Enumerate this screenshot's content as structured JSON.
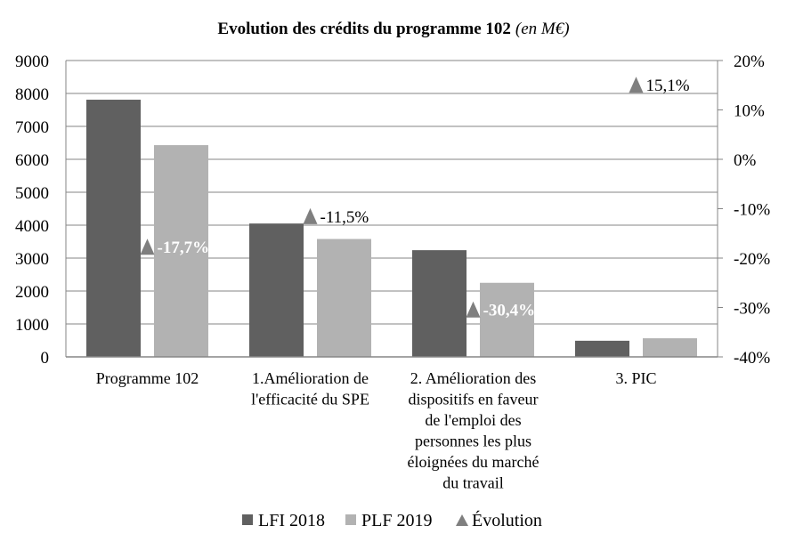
{
  "chart_data": {
    "type": "bar",
    "title": "Evolution des crédits du programme 102",
    "title_suffix": "(en M€)",
    "xlabel": "",
    "ylabel": "",
    "categories": [
      "Programme 102",
      "1.Amélioration de l'efficacité du SPE",
      "2. Amélioration des dispositifs en faveur de l'emploi des personnes les plus éloignées du marché du travail",
      "3. PIC"
    ],
    "category_lines": [
      [
        "Programme 102"
      ],
      [
        "1.Amélioration de",
        "l'efficacité du SPE"
      ],
      [
        "2. Amélioration des",
        "dispositifs en faveur",
        "de l'emploi des",
        "personnes les plus",
        "éloignées du marché",
        "du travail"
      ],
      [
        "3. PIC"
      ]
    ],
    "series": [
      {
        "name": "LFI 2018",
        "type": "bar",
        "axis": "left",
        "color": "#606060",
        "values": [
          7810,
          4050,
          3240,
          490
        ]
      },
      {
        "name": "PLF 2019",
        "type": "bar",
        "axis": "left",
        "color": "#b2b2b2",
        "values": [
          6430,
          3580,
          2250,
          565
        ]
      },
      {
        "name": "Évolution",
        "type": "scatter",
        "marker": "triangle",
        "axis": "right",
        "color": "#7f7f7f",
        "values": [
          -17.7,
          -11.5,
          -30.4,
          15.1
        ],
        "labels": [
          "-17,7%",
          "-11,5%",
          "-30,4%",
          "15,1%"
        ],
        "label_styles": [
          "light",
          "dark",
          "light",
          "dark"
        ]
      }
    ],
    "ylim": [
      0,
      9000
    ],
    "yticks": [
      0,
      1000,
      2000,
      3000,
      4000,
      5000,
      6000,
      7000,
      8000,
      9000
    ],
    "y2lim": [
      -40,
      20
    ],
    "y2ticks": [
      -40,
      -30,
      -20,
      -10,
      0,
      10,
      20
    ],
    "y2tick_labels": [
      "-40%",
      "-30%",
      "-20%",
      "-10%",
      "0%",
      "10%",
      "20%"
    ],
    "grid": true,
    "legend_position": "bottom"
  }
}
